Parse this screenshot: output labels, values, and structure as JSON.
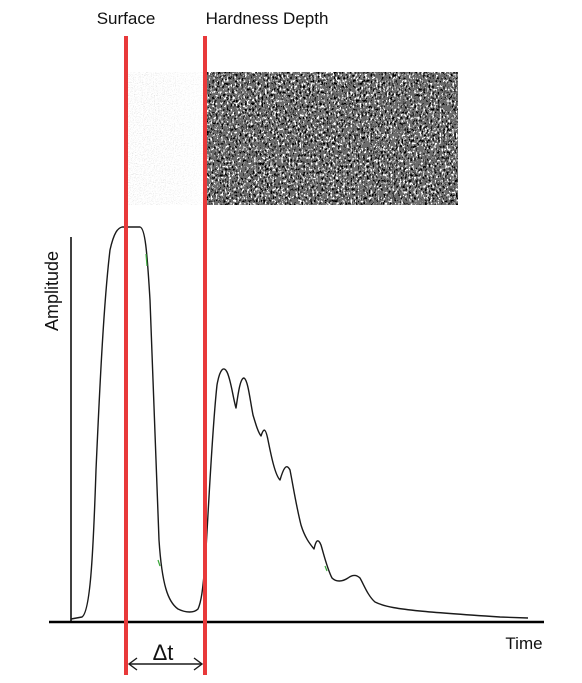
{
  "labels": {
    "surface": "Surface",
    "hardness_depth": "Hardness Depth",
    "amplitude": "Amplitude",
    "time": "Time",
    "delta_t": "Δt"
  },
  "colors": {
    "marker_line": "#e8393a",
    "curve": "#1a1a1a",
    "axis": "#000000",
    "curve_highlight": "#3aa63a"
  },
  "chart_data": {
    "type": "line",
    "xlabel": "Time",
    "ylabel": "Amplitude",
    "markers": [
      {
        "label": "Surface"
      },
      {
        "label": "Hardness Depth"
      }
    ],
    "interval_label": "Δt"
  }
}
